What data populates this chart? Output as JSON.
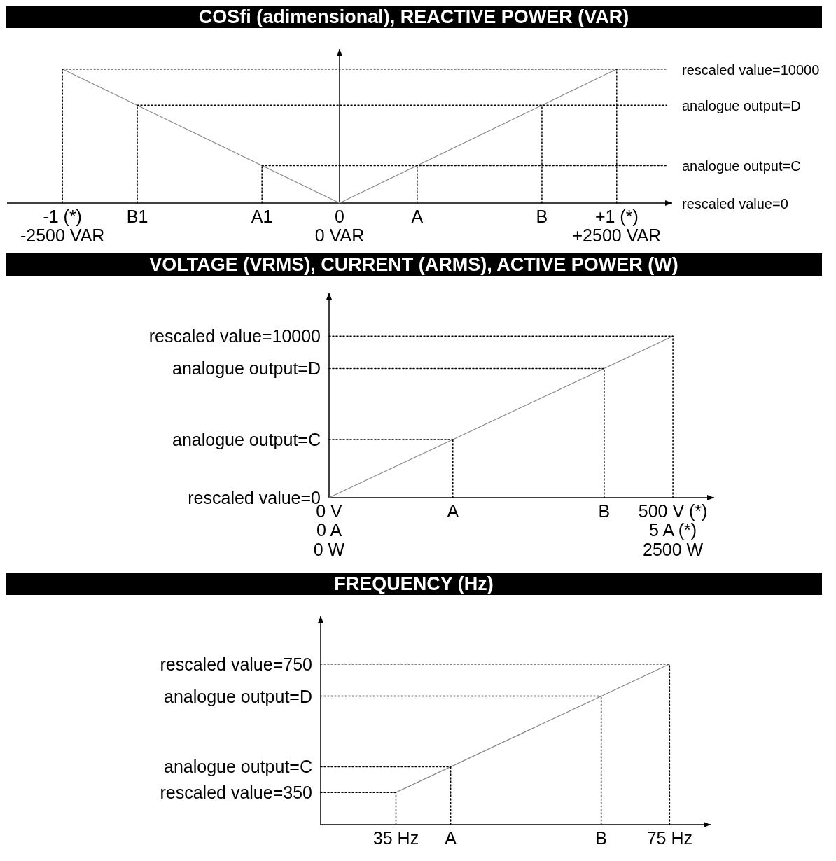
{
  "chart_data": [
    {
      "type": "line",
      "title": "COSfi (adimensional), REACTIVE POWER (VAR)",
      "xlim": [
        -1.2,
        1.2
      ],
      "xticks": [
        {
          "value": -1,
          "label": "-1 (*)"
        },
        {
          "value": -0.73,
          "label": "B1"
        },
        {
          "value": -0.28,
          "label": "A1"
        },
        {
          "value": 0,
          "label": "0"
        },
        {
          "value": 0.28,
          "label": "A"
        },
        {
          "value": 0.73,
          "label": "B"
        },
        {
          "value": 1,
          "label": "+1 (*)"
        }
      ],
      "annotations": [
        "-2500 VAR",
        "0 VAR",
        "+2500 VAR"
      ],
      "y2lim": [
        0,
        11500
      ],
      "y2ticks": [
        {
          "value": 0,
          "label": "rescaled value=0"
        },
        {
          "value": 2800,
          "label": "analogue output=C"
        },
        {
          "value": 7300,
          "label": "analogue output=D"
        },
        {
          "value": 10000,
          "label": "rescaled value=10000"
        }
      ],
      "grid": false,
      "marker": "none",
      "ref_lines": [
        {
          "axis": "x",
          "value": 0,
          "color": "#000000",
          "line_style": "solid"
        }
      ],
      "series": [
        {
          "axis": "y2",
          "color": "#888888",
          "line_style": "solid",
          "x": [
            -1,
            0,
            1
          ],
          "values": [
            10000,
            0,
            10000
          ]
        },
        {
          "axis": "y2",
          "color": "#000000",
          "line_style": "dotted",
          "x": [
            -1,
            1.18
          ],
          "values": [
            10000,
            10000
          ]
        },
        {
          "axis": "y2",
          "color": "#000000",
          "line_style": "dotted",
          "x": [
            -0.73,
            1.18
          ],
          "values": [
            7300,
            7300
          ]
        },
        {
          "axis": "y2",
          "color": "#000000",
          "line_style": "dotted",
          "x": [
            -0.28,
            1.18
          ],
          "values": [
            2800,
            2800
          ]
        },
        {
          "axis": "y2",
          "color": "#000000",
          "line_style": "dotted",
          "x": [
            -1,
            -1
          ],
          "values": [
            0,
            10000
          ]
        },
        {
          "axis": "y2",
          "color": "#000000",
          "line_style": "dotted",
          "x": [
            1,
            1
          ],
          "values": [
            0,
            10000
          ]
        },
        {
          "axis": "y2",
          "color": "#000000",
          "line_style": "dotted",
          "x": [
            -0.73,
            -0.73
          ],
          "values": [
            0,
            7300
          ]
        },
        {
          "axis": "y2",
          "color": "#000000",
          "line_style": "dotted",
          "x": [
            0.73,
            0.73
          ],
          "values": [
            0,
            7300
          ]
        },
        {
          "axis": "y2",
          "color": "#000000",
          "line_style": "dotted",
          "x": [
            -0.28,
            -0.28
          ],
          "values": [
            0,
            2800
          ]
        },
        {
          "axis": "y2",
          "color": "#000000",
          "line_style": "dotted",
          "x": [
            0.28,
            0.28
          ],
          "values": [
            0,
            2800
          ]
        }
      ]
    },
    {
      "type": "line",
      "title": "VOLTAGE (VRMS), CURRENT (ARMS), ACTIVE POWER (W)",
      "xlim": [
        0,
        560
      ],
      "xticks": [
        {
          "value": 0,
          "label": "0 V"
        },
        {
          "value": 180,
          "label": "A"
        },
        {
          "value": 400,
          "label": "B"
        },
        {
          "value": 500,
          "label": "500 V (*)"
        }
      ],
      "annotations": [
        "0 A\n0 W",
        "5 A (*)\n2500 W"
      ],
      "ylim": [
        0,
        12700
      ],
      "yticks": [
        {
          "value": 0,
          "label": "rescaled value=0"
        },
        {
          "value": 3600,
          "label": "analogue output=C"
        },
        {
          "value": 8000,
          "label": "analogue output=D"
        },
        {
          "value": 10000,
          "label": "rescaled value=10000"
        }
      ],
      "grid": false,
      "marker": "none",
      "series": [
        {
          "color": "#888888",
          "line_style": "solid",
          "x": [
            0,
            500
          ],
          "values": [
            0,
            10000
          ]
        },
        {
          "color": "#000000",
          "line_style": "dotted",
          "x": [
            0,
            180
          ],
          "values": [
            3600,
            3600
          ]
        },
        {
          "color": "#000000",
          "line_style": "dotted",
          "x": [
            180,
            180
          ],
          "values": [
            0,
            3600
          ]
        },
        {
          "color": "#000000",
          "line_style": "dotted",
          "x": [
            0,
            400
          ],
          "values": [
            8000,
            8000
          ]
        },
        {
          "color": "#000000",
          "line_style": "dotted",
          "x": [
            400,
            400
          ],
          "values": [
            0,
            8000
          ]
        },
        {
          "color": "#000000",
          "line_style": "dotted",
          "x": [
            0,
            500
          ],
          "values": [
            10000,
            10000
          ]
        },
        {
          "color": "#000000",
          "line_style": "dotted",
          "x": [
            500,
            500
          ],
          "values": [
            0,
            10000
          ]
        }
      ]
    },
    {
      "type": "line",
      "title": "FREQUENCY (Hz)",
      "xlim": [
        24,
        81
      ],
      "xticks": [
        {
          "value": 35,
          "label": "35 Hz"
        },
        {
          "value": 43,
          "label": "A"
        },
        {
          "value": 65,
          "label": "B"
        },
        {
          "value": 75,
          "label": "75 Hz"
        }
      ],
      "ylim": [
        250,
        900
      ],
      "yticks": [
        {
          "value": 350,
          "label": "rescaled value=350"
        },
        {
          "value": 430,
          "label": "analogue output=C"
        },
        {
          "value": 650,
          "label": "analogue output=D"
        },
        {
          "value": 750,
          "label": "rescaled value=750"
        }
      ],
      "grid": false,
      "marker": "none",
      "series": [
        {
          "color": "#888888",
          "line_style": "solid",
          "x": [
            35,
            75
          ],
          "values": [
            350,
            750
          ]
        },
        {
          "color": "#000000",
          "line_style": "dotted",
          "x": [
            24,
            35
          ],
          "values": [
            350,
            350
          ]
        },
        {
          "color": "#000000",
          "line_style": "dotted",
          "x": [
            35,
            35
          ],
          "values": [
            250,
            350
          ]
        },
        {
          "color": "#000000",
          "line_style": "dotted",
          "x": [
            24,
            43
          ],
          "values": [
            430,
            430
          ]
        },
        {
          "color": "#000000",
          "line_style": "dotted",
          "x": [
            43,
            43
          ],
          "values": [
            250,
            430
          ]
        },
        {
          "color": "#000000",
          "line_style": "dotted",
          "x": [
            24,
            65
          ],
          "values": [
            650,
            650
          ]
        },
        {
          "color": "#000000",
          "line_style": "dotted",
          "x": [
            65,
            65
          ],
          "values": [
            250,
            650
          ]
        },
        {
          "color": "#000000",
          "line_style": "dotted",
          "x": [
            24,
            75
          ],
          "values": [
            750,
            750
          ]
        },
        {
          "color": "#000000",
          "line_style": "dotted",
          "x": [
            75,
            75
          ],
          "values": [
            250,
            750
          ]
        }
      ]
    }
  ]
}
